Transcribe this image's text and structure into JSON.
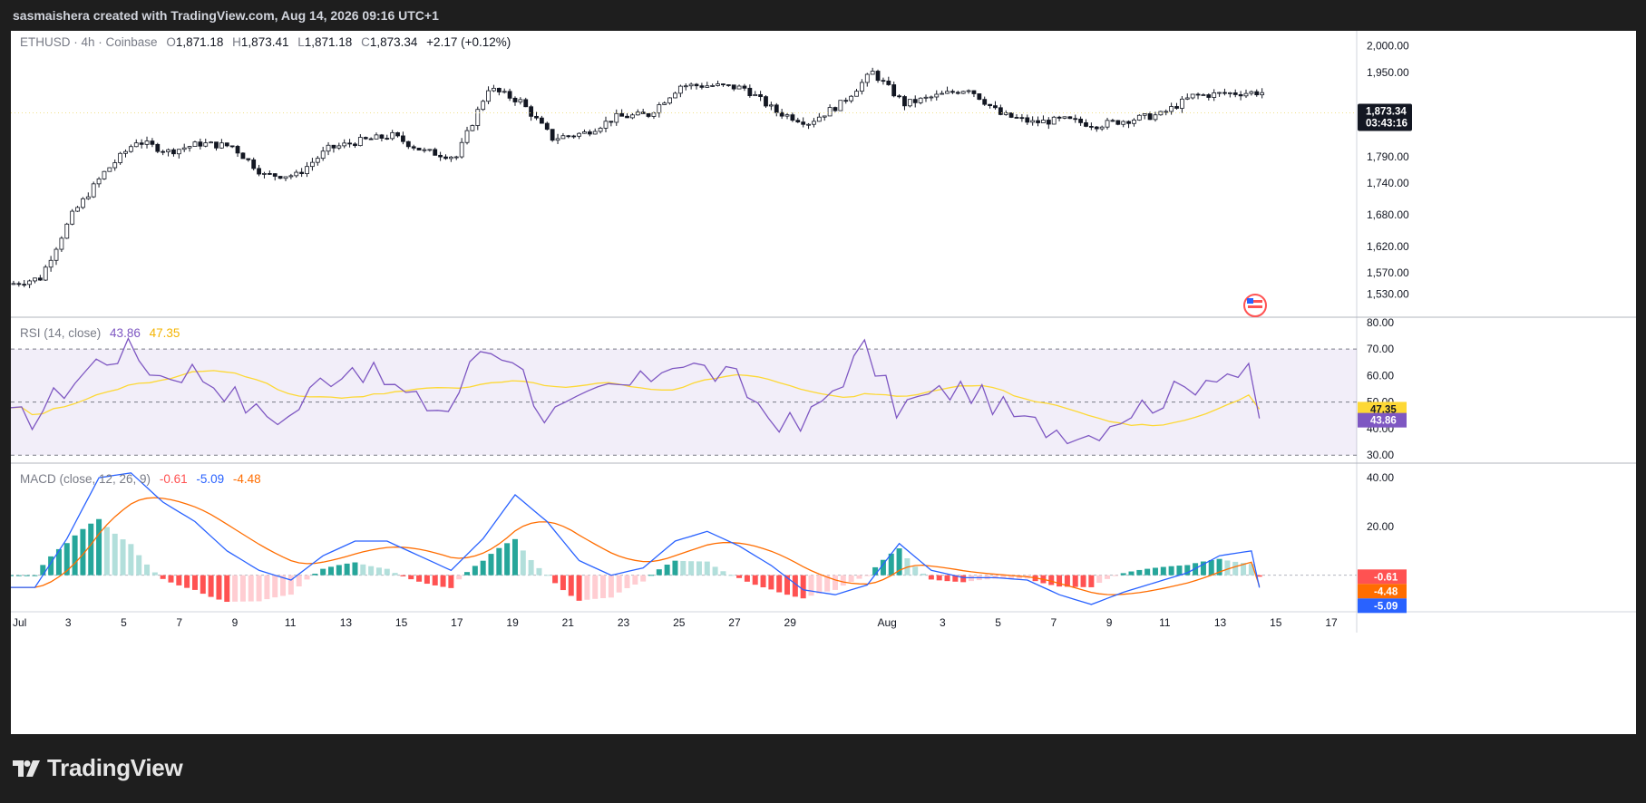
{
  "header": {
    "credit": "sasmaishera created with TradingView.com, Aug 14, 2026 09:16 UTC+1"
  },
  "legend": {
    "symbol": "ETHUSD · 4h · Coinbase",
    "o_label": "O",
    "o_value": "1,871.18",
    "h_label": "H",
    "h_value": "1,873.41",
    "l_label": "L",
    "l_value": "1,871.18",
    "c_label": "C",
    "c_value": "1,873.34",
    "change": "+2.17 (+0.12%)"
  },
  "rsi_legend": {
    "label": "RSI (14, close)",
    "rsi": "43.86",
    "ma": "47.35"
  },
  "macd_legend": {
    "label": "MACD (close, 12, 26, 9)",
    "hist": "-0.61",
    "macd": "-5.09",
    "signal": "-4.48"
  },
  "price_tag": {
    "price": "1,873.34",
    "countdown": "03:43:16"
  },
  "brand": {
    "name": "TradingView"
  },
  "colors": {
    "up": "#ffffff",
    "down": "#131722",
    "candle_border": "#131722",
    "rsi_line": "#7e57c2",
    "rsi_ma": "#fdd835",
    "rsi_band": "#7e57c2",
    "macd_line": "#2962ff",
    "signal_line": "#ff6d00",
    "hist_up_strong": "#26a69a",
    "hist_up_weak": "#b2dfdb",
    "hist_down_strong": "#ff5252",
    "hist_down_weak": "#ffcdd2",
    "price_tag_bg": "#131722",
    "rsi_tag": "#7e57c2",
    "ma_tag": "#fdd835"
  },
  "chart_data": [
    {
      "type": "candlestick",
      "title": "ETHUSD · 4h · Coinbase",
      "timeframe": "4h",
      "x_ticks": [
        "Jul",
        "3",
        "5",
        "7",
        "9",
        "11",
        "13",
        "15",
        "17",
        "19",
        "21",
        "23",
        "25",
        "27",
        "29",
        "Aug",
        "3",
        "5",
        "7",
        "9",
        "11",
        "13",
        "15",
        "17"
      ],
      "y_ticks": [
        "2,000.00",
        "1,950.00",
        "1,870.00",
        "1,790.00",
        "1,740.00",
        "1,680.00",
        "1,620.00",
        "1,570.00",
        "1,530.00"
      ],
      "ylim": [
        1510,
        2015
      ],
      "last_close": 1873.34,
      "daily_path": [
        {
          "date": "Jul 1",
          "close": 1560
        },
        {
          "date": "Jul 2",
          "close": 1680
        },
        {
          "date": "Jul 3",
          "close": 1760
        },
        {
          "date": "Jul 4",
          "close": 1820
        },
        {
          "date": "Jul 5",
          "close": 1800
        },
        {
          "date": "Jul 6",
          "close": 1815
        },
        {
          "date": "Jul 7",
          "close": 1810
        },
        {
          "date": "Jul 8",
          "close": 1755
        },
        {
          "date": "Jul 9",
          "close": 1755
        },
        {
          "date": "Jul 10",
          "close": 1805
        },
        {
          "date": "Jul 11",
          "close": 1820
        },
        {
          "date": "Jul 12",
          "close": 1830
        },
        {
          "date": "Jul 13",
          "close": 1800
        },
        {
          "date": "Jul 14",
          "close": 1790
        },
        {
          "date": "Jul 15",
          "close": 1920
        },
        {
          "date": "Jul 16",
          "close": 1895
        },
        {
          "date": "Jul 17",
          "close": 1825
        },
        {
          "date": "Jul 18",
          "close": 1835
        },
        {
          "date": "Jul 19",
          "close": 1865
        },
        {
          "date": "Jul 20",
          "close": 1870
        },
        {
          "date": "Jul 21",
          "close": 1925
        },
        {
          "date": "Jul 22",
          "close": 1925
        },
        {
          "date": "Jul 23",
          "close": 1920
        },
        {
          "date": "Jul 24",
          "close": 1875
        },
        {
          "date": "Jul 25",
          "close": 1855
        },
        {
          "date": "Jul 26",
          "close": 1890
        },
        {
          "date": "Jul 27",
          "close": 1950
        },
        {
          "date": "Jul 28",
          "close": 1890
        },
        {
          "date": "Jul 29",
          "close": 1905
        },
        {
          "date": "Jul 30",
          "close": 1920
        },
        {
          "date": "Jul 31",
          "close": 1870
        },
        {
          "date": "Aug 1",
          "close": 1855
        },
        {
          "date": "Aug 2",
          "close": 1860
        },
        {
          "date": "Aug 3",
          "close": 1850
        },
        {
          "date": "Aug 4",
          "close": 1860
        },
        {
          "date": "Aug 5",
          "close": 1870
        },
        {
          "date": "Aug 6",
          "close": 1905
        },
        {
          "date": "Aug 7",
          "close": 1910
        },
        {
          "date": "Aug 8",
          "close": 1912
        },
        {
          "date": "Aug 9",
          "close": 1912
        },
        {
          "date": "Aug 10",
          "close": 1910
        },
        {
          "date": "Aug 11",
          "close": 1865
        },
        {
          "date": "Aug 12",
          "close": 1875
        },
        {
          "date": "Aug 13",
          "close": 1880
        },
        {
          "date": "Aug 14",
          "close": 1873.34
        }
      ]
    },
    {
      "type": "line",
      "title": "RSI (14, close)",
      "y_ticks": [
        "80.00",
        "70.00",
        "60.00",
        "50.00",
        "40.00",
        "30.00"
      ],
      "ylim": [
        27,
        82
      ],
      "bands": [
        30,
        50,
        70
      ],
      "series": [
        {
          "name": "RSI",
          "last": 43.86,
          "daily": [
            44,
            55,
            65,
            70,
            60,
            62,
            55,
            46,
            44,
            58,
            64,
            58,
            50,
            47,
            70,
            68,
            45,
            48,
            55,
            57,
            66,
            62,
            58,
            45,
            40,
            55,
            70,
            48,
            52,
            55,
            50,
            42,
            40,
            38,
            45,
            50,
            55,
            62,
            60,
            58,
            55,
            38,
            45,
            46,
            43.86
          ]
        },
        {
          "name": "MA",
          "last": 47.35
        }
      ]
    },
    {
      "type": "line",
      "title": "MACD (close, 12, 26, 9)",
      "y_ticks": [
        "40.00",
        "20.00"
      ],
      "ylim": [
        -15,
        46
      ],
      "series": [
        {
          "name": "MACD",
          "last": -5.09,
          "daily": [
            -5,
            15,
            40,
            42,
            30,
            22,
            10,
            2,
            -2,
            8,
            14,
            14,
            8,
            2,
            15,
            33,
            22,
            6,
            0,
            3,
            14,
            18,
            12,
            4,
            -6,
            -8,
            -4,
            13,
            2,
            -1,
            -1,
            -2,
            -8,
            -12,
            -7,
            -3,
            1,
            8,
            10,
            9,
            8,
            5,
            -5,
            -4,
            -5.09
          ]
        },
        {
          "name": "Signal",
          "last": -4.48
        },
        {
          "name": "Histogram",
          "last": -0.61
        }
      ]
    }
  ]
}
